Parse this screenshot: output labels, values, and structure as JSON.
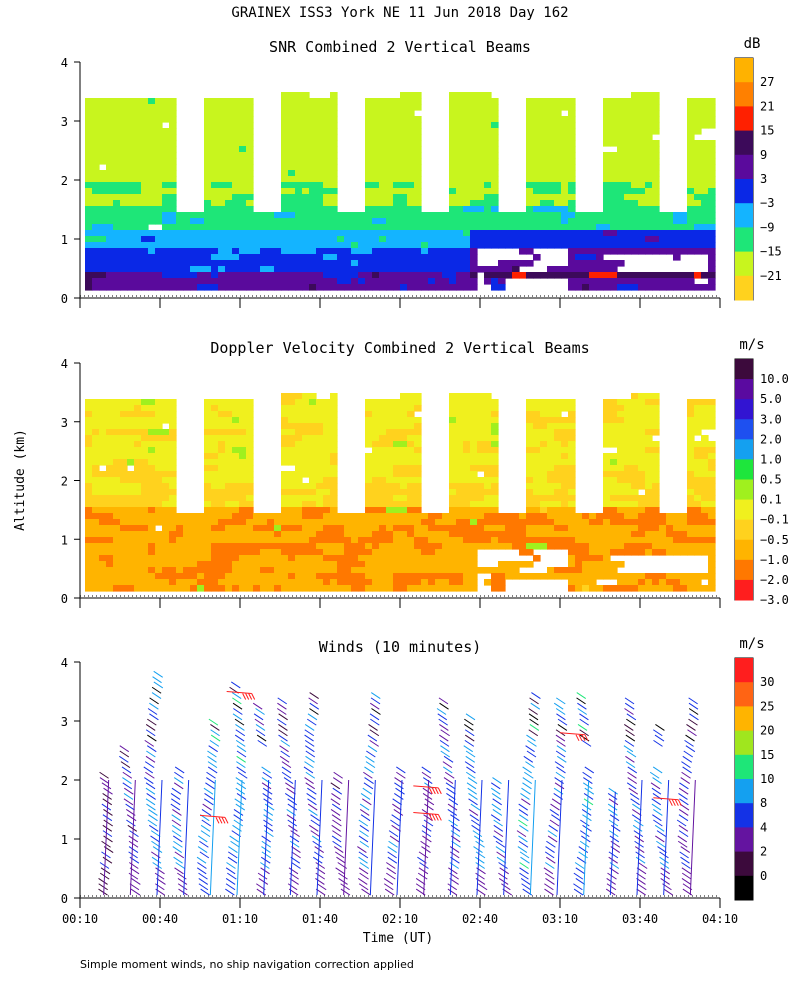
{
  "figure": {
    "title": "GRAINEX ISS3 York NE  11 Jun 2018 Day 162",
    "ylabel": "Altitude (km)",
    "xlabel": "Time (UT)",
    "footnote": "Simple moment winds, no ship navigation correction applied",
    "x_ticks": [
      "00:10",
      "00:40",
      "01:10",
      "01:40",
      "02:10",
      "02:40",
      "03:10",
      "03:40",
      "04:10"
    ],
    "y_ticks": [
      "0",
      "1",
      "2",
      "3",
      "4"
    ]
  },
  "chart_data": [
    {
      "type": "heatmap",
      "title": "SNR Combined 2 Vertical Beams",
      "units": "dB",
      "xlabel": "",
      "ylabel": "Altitude (km)",
      "xlim": [
        "00:10",
        "04:10"
      ],
      "ylim": [
        0,
        4
      ],
      "colorbar": {
        "labels": [
          "27",
          "21",
          "15",
          "9",
          "3",
          "−3",
          "−9",
          "−15",
          "−21"
        ],
        "colors": [
          "#ffb200",
          "#ff8000",
          "#ff2000",
          "#3c0a5a",
          "#5a0a9c",
          "#0a28e6",
          "#14b4ff",
          "#1ee678",
          "#c8f51e",
          "#ffd21e"
        ]
      },
      "layers_km": {
        "strong_low": [
          0.1,
          0.45
        ],
        "mid_blue": [
          0.45,
          1.0
        ],
        "cyan": [
          1.0,
          1.6
        ],
        "green_upper": [
          1.6,
          3.4
        ]
      }
    },
    {
      "type": "heatmap",
      "title": "Doppler Velocity Combined 2 Vertical Beams",
      "units": "m/s",
      "xlabel": "",
      "ylabel": "Altitude (km)",
      "xlim": [
        "00:10",
        "04:10"
      ],
      "ylim": [
        0,
        4
      ],
      "colorbar": {
        "labels": [
          "10.0",
          "5.0",
          "3.0",
          "2.0",
          "1.0",
          "0.5",
          "0.1",
          "−0.1",
          "−0.5",
          "−1.0",
          "−2.0",
          "−3.0"
        ],
        "colors": [
          "#3c0a3c",
          "#5a0aa0",
          "#3214d2",
          "#1e50f0",
          "#14a0f0",
          "#1ee63c",
          "#a0f01e",
          "#f0f01e",
          "#ffd21e",
          "#ffb400",
          "#ff7800",
          "#ff1e1e"
        ]
      },
      "dominant_values": {
        "below_1.5km": "-0.5 to -1.0",
        "above_1.5km": "-0.1 to 0.1"
      }
    },
    {
      "type": "scatter",
      "title": "Winds (10 minutes)",
      "units": "m/s",
      "xlabel": "Time (UT)",
      "ylabel": "Altitude (km)",
      "xlim": [
        "00:10",
        "04:10"
      ],
      "ylim": [
        0,
        4
      ],
      "colorbar": {
        "labels": [
          "30",
          "25",
          "20",
          "15",
          "10",
          "8",
          "4",
          "2",
          "0"
        ],
        "colors": [
          "#ff1e1e",
          "#ff6414",
          "#ffb400",
          "#a0e61e",
          "#1ee678",
          "#14a0f0",
          "#1432e6",
          "#6414a0",
          "#3c0a3c",
          "#000000"
        ]
      },
      "profiles": [
        {
          "time": "00:20",
          "top_km": 2.1,
          "speed_ms": 10
        },
        {
          "time": "00:30",
          "top_km": 2.5,
          "speed_ms": 12
        },
        {
          "time": "00:40",
          "top_km": 3.8,
          "speed_ms": 15
        },
        {
          "time": "00:50",
          "top_km": 2.3,
          "speed_ms": 14
        },
        {
          "time": "01:00",
          "top_km": 3.0,
          "speed_ms": 16
        },
        {
          "time": "01:10",
          "top_km": 3.6,
          "speed_ms": 16
        },
        {
          "time": "01:20",
          "top_km": 3.2,
          "speed_ms": 15
        },
        {
          "time": "01:30",
          "top_km": 3.3,
          "speed_ms": 13
        },
        {
          "time": "01:40",
          "top_km": 3.4,
          "speed_ms": 14
        },
        {
          "time": "01:50",
          "top_km": 2.1,
          "speed_ms": 12
        },
        {
          "time": "02:00",
          "top_km": 3.4,
          "speed_ms": 14
        },
        {
          "time": "02:10",
          "top_km": 2.2,
          "speed_ms": 13
        },
        {
          "time": "02:20",
          "top_km": 2.2,
          "speed_ms": 12
        },
        {
          "time": "02:30",
          "top_km": 3.3,
          "speed_ms": 14
        },
        {
          "time": "02:40",
          "top_km": 3.1,
          "speed_ms": 15
        },
        {
          "time": "02:50",
          "top_km": 2.0,
          "speed_ms": 15
        },
        {
          "time": "03:00",
          "top_km": 3.4,
          "speed_ms": 16
        },
        {
          "time": "03:10",
          "top_km": 3.3,
          "speed_ms": 14
        },
        {
          "time": "03:20",
          "top_km": 3.4,
          "speed_ms": 16
        },
        {
          "time": "03:30",
          "top_km": 1.8,
          "speed_ms": 15
        },
        {
          "time": "03:40",
          "top_km": 3.3,
          "speed_ms": 14
        },
        {
          "time": "03:50",
          "top_km": 2.9,
          "speed_ms": 15
        },
        {
          "time": "04:00",
          "top_km": 3.3,
          "speed_ms": 12
        }
      ]
    }
  ]
}
